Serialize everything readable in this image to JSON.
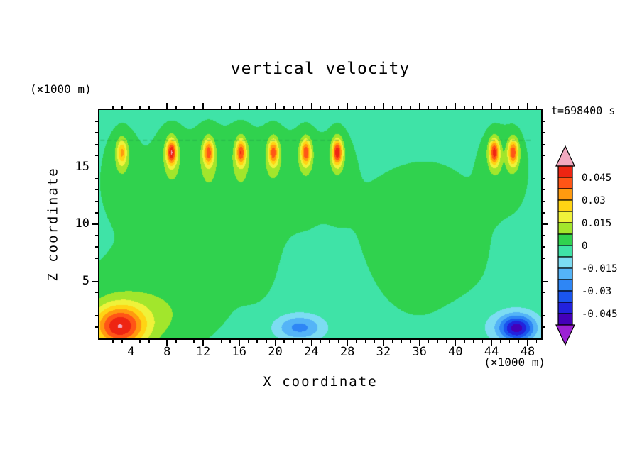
{
  "title": "vertical velocity",
  "annotations": {
    "time_label": "t=698400 s"
  },
  "x_axis": {
    "label": "X coordinate",
    "unit_label": "(×1000 m)",
    "range": [
      0.5,
      49.5
    ],
    "major_ticks": [
      4,
      8,
      12,
      16,
      20,
      24,
      28,
      32,
      36,
      40,
      44,
      48
    ],
    "minor_tick_step": 1,
    "major_tick_every": 4
  },
  "y_axis": {
    "label": "Z coordinate",
    "unit_label": "(×1000 m)",
    "range": [
      0,
      20
    ],
    "major_ticks": [
      5,
      10,
      15
    ],
    "minor_tick_step": 1,
    "major_tick_every": 5
  },
  "colorbar": {
    "labels_top_to_bottom": [
      "0.045",
      "0.03",
      "0.015",
      "0",
      "-0.015",
      "-0.03",
      "-0.045"
    ],
    "segments": 14
  },
  "chart_data": {
    "type": "heatmap",
    "title": "vertical velocity",
    "time": "t=698400 s",
    "contour_levels": [
      -0.0525,
      -0.045,
      -0.0375,
      -0.03,
      -0.0225,
      -0.015,
      -0.0075,
      0,
      0.0075,
      0.015,
      0.0225,
      0.03,
      0.0375,
      0.045,
      0.0525
    ],
    "band_colors": [
      "#4400b8",
      "#2222dd",
      "#1a55ee",
      "#2e86f5",
      "#54b4f7",
      "#7cdcf2",
      "#3fe3a7",
      "#30d24e",
      "#a2e62c",
      "#eff23a",
      "#ffd414",
      "#ff9a0f",
      "#ff5516",
      "#ee2512"
    ],
    "under_arrow_color": "#9c22d4",
    "over_arrow_color": "#f2a9c0",
    "base_value": -0.002,
    "gaussian_features": [
      {
        "x": 2.7,
        "z": 1.0,
        "sx": 2.0,
        "sz": 1.3,
        "a": 0.046
      },
      {
        "x": 5.0,
        "z": 1.8,
        "sx": 4.5,
        "sz": 1.9,
        "a": 0.01
      },
      {
        "x": 8.0,
        "z": 5.0,
        "sx": 6.5,
        "sz": 2.6,
        "a": 0.0035
      },
      {
        "x": 13.5,
        "z": 12.8,
        "sx": 9.0,
        "sz": 3.6,
        "a": 0.0045
      },
      {
        "x": 18.0,
        "z": 7.0,
        "sx": 1.6,
        "sz": 2.8,
        "a": 0.0025
      },
      {
        "x": 37.0,
        "z": 8.5,
        "sx": 5.0,
        "sz": 5.0,
        "a": 0.005
      },
      {
        "x": 22.7,
        "z": 0.95,
        "sx": 1.9,
        "sz": 0.8,
        "a": -0.023
      },
      {
        "x": 45.5,
        "z": 1.1,
        "sx": 3.5,
        "sz": 1.4,
        "a": -0.006
      },
      {
        "x": 46.8,
        "z": 0.9,
        "sx": 1.35,
        "sz": 0.8,
        "a": -0.042
      },
      {
        "x": 3.0,
        "z": 16.3,
        "sx": 0.4,
        "sz": 0.8,
        "a": 0.028
      },
      {
        "x": 3.0,
        "z": 15.0,
        "sx": 1.1,
        "sz": 2.2,
        "a": 0.006
      },
      {
        "x": 8.5,
        "z": 16.3,
        "sx": 0.4,
        "sz": 0.8,
        "a": 0.048
      },
      {
        "x": 8.5,
        "z": 15.0,
        "sx": 1.1,
        "sz": 2.2,
        "a": 0.006
      },
      {
        "x": 12.6,
        "z": 16.3,
        "sx": 0.4,
        "sz": 0.8,
        "a": 0.038
      },
      {
        "x": 12.6,
        "z": 15.0,
        "sx": 1.1,
        "sz": 2.2,
        "a": 0.006
      },
      {
        "x": 16.2,
        "z": 16.3,
        "sx": 0.4,
        "sz": 0.8,
        "a": 0.04
      },
      {
        "x": 16.2,
        "z": 15.0,
        "sx": 1.1,
        "sz": 2.2,
        "a": 0.006
      },
      {
        "x": 19.8,
        "z": 16.3,
        "sx": 0.4,
        "sz": 0.8,
        "a": 0.038
      },
      {
        "x": 19.8,
        "z": 15.0,
        "sx": 1.1,
        "sz": 2.2,
        "a": 0.006
      },
      {
        "x": 23.4,
        "z": 16.3,
        "sx": 0.4,
        "sz": 0.8,
        "a": 0.04
      },
      {
        "x": 23.4,
        "z": 15.0,
        "sx": 1.1,
        "sz": 2.2,
        "a": 0.006
      },
      {
        "x": 26.9,
        "z": 16.3,
        "sx": 0.4,
        "sz": 0.8,
        "a": 0.048
      },
      {
        "x": 26.9,
        "z": 15.0,
        "sx": 1.1,
        "sz": 2.2,
        "a": 0.006
      },
      {
        "x": 44.3,
        "z": 16.3,
        "sx": 0.4,
        "sz": 0.8,
        "a": 0.045
      },
      {
        "x": 44.3,
        "z": 15.0,
        "sx": 1.1,
        "sz": 2.2,
        "a": 0.006
      },
      {
        "x": 46.4,
        "z": 16.3,
        "sx": 0.4,
        "sz": 0.8,
        "a": 0.04
      },
      {
        "x": 46.4,
        "z": 15.0,
        "sx": 1.1,
        "sz": 2.2,
        "a": 0.006
      }
    ],
    "dashed_line": {
      "z": 17.35,
      "color": "#1fa14a",
      "x_segments": [
        [
          0.6,
          27.6
        ],
        [
          43.9,
          48.4
        ]
      ]
    }
  }
}
